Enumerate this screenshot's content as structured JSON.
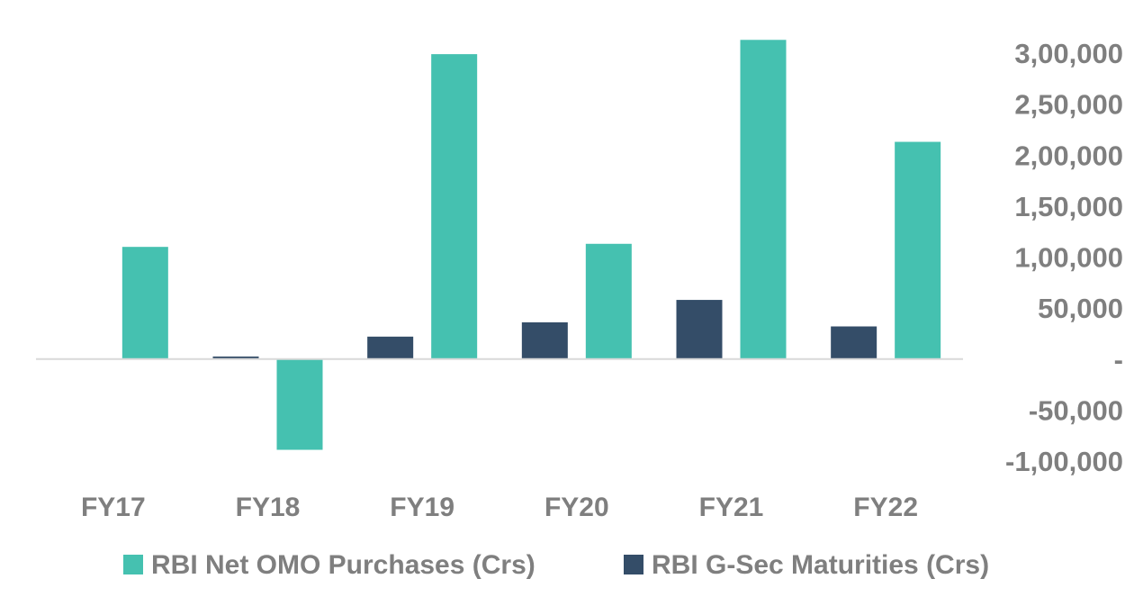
{
  "chart_data": {
    "type": "bar",
    "categories": [
      "FY17",
      "FY18",
      "FY19",
      "FY20",
      "FY21",
      "FY22"
    ],
    "series": [
      {
        "name": "RBI G-Sec Maturities (Crs)",
        "color": "#344d68",
        "values": [
          0,
          2500,
          22000,
          36000,
          58000,
          32000
        ]
      },
      {
        "name": "RBI Net OMO Purchases (Crs)",
        "color": "#45c1b0",
        "values": [
          110000,
          -89000,
          299000,
          113000,
          313000,
          213000
        ]
      }
    ],
    "ylim": [
      -100000,
      300000
    ],
    "y_ticks": [
      {
        "value": 300000,
        "label": "3,00,000"
      },
      {
        "value": 250000,
        "label": "2,50,000"
      },
      {
        "value": 200000,
        "label": "2,00,000"
      },
      {
        "value": 150000,
        "label": "1,50,000"
      },
      {
        "value": 100000,
        "label": "1,00,000"
      },
      {
        "value": 50000,
        "label": "50,000"
      },
      {
        "value": 0,
        "label": "-"
      },
      {
        "value": -50000,
        "label": "-50,000"
      },
      {
        "value": -100000,
        "label": "-1,00,000"
      }
    ],
    "y_axis_position": "right",
    "grid": false,
    "legend": {
      "position": "bottom",
      "entries": [
        {
          "label": "RBI Net OMO Purchases (Crs)",
          "color": "#45c1b0"
        },
        {
          "label": "RBI G-Sec Maturities (Crs)",
          "color": "#344d68"
        }
      ]
    },
    "title": "",
    "xlabel": "",
    "ylabel": ""
  }
}
